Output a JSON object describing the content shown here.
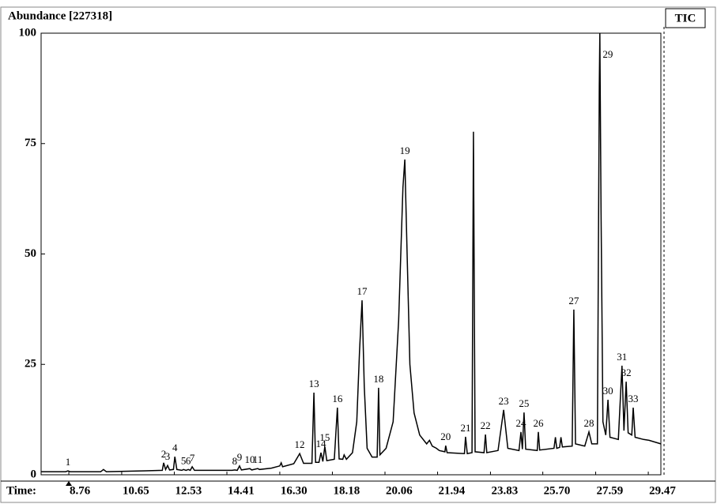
{
  "chart_data": {
    "type": "line",
    "title": "Abundance [227318]",
    "xlabel": "Time:",
    "legend": "TIC",
    "color": "#000000",
    "xlim": [
      7.77,
      29.92
    ],
    "xticks": [
      8.76,
      10.65,
      12.53,
      14.41,
      16.3,
      18.18,
      20.06,
      21.94,
      23.83,
      25.7,
      27.59,
      29.47
    ],
    "ylim": [
      0,
      100
    ],
    "yticks": [
      0,
      25,
      50,
      75,
      100
    ],
    "grid": false,
    "x": [
      7.77,
      8.65,
      8.73,
      8.8,
      9.9,
      10.0,
      10.1,
      11.5,
      12.1,
      12.15,
      12.22,
      12.29,
      12.36,
      12.5,
      12.55,
      12.62,
      12.8,
      12.86,
      12.95,
      13.03,
      13.1,
      13.17,
      13.25,
      14.6,
      14.69,
      14.78,
      14.86,
      14.93,
      15.23,
      15.3,
      15.51,
      15.58,
      16.0,
      16.3,
      16.35,
      16.4,
      16.8,
      17.01,
      17.15,
      17.45,
      17.52,
      17.58,
      17.7,
      17.77,
      17.84,
      17.91,
      17.98,
      18.25,
      18.36,
      18.42,
      18.55,
      18.6,
      18.68,
      18.9,
      19.05,
      19.15,
      19.24,
      19.32,
      19.42,
      19.6,
      19.78,
      19.83,
      19.88,
      20.1,
      20.35,
      20.55,
      20.7,
      20.77,
      20.85,
      20.95,
      21.1,
      21.3,
      21.55,
      21.65,
      21.75,
      21.9,
      22.0,
      22.2,
      22.23,
      22.28,
      22.9,
      22.94,
      23.0,
      23.17,
      23.22,
      23.28,
      23.6,
      23.65,
      23.7,
      24.1,
      24.3,
      24.45,
      24.85,
      24.92,
      24.97,
      25.03,
      25.09,
      25.5,
      25.54,
      25.59,
      26.1,
      26.15,
      26.2,
      26.3,
      26.35,
      26.4,
      26.75,
      26.81,
      26.87,
      27.2,
      27.35,
      27.45,
      27.65,
      27.72,
      27.74,
      27.78,
      27.85,
      27.95,
      28.03,
      28.1,
      28.4,
      28.53,
      28.6,
      28.68,
      28.75,
      28.88,
      28.93,
      29.0,
      29.3,
      29.5,
      29.92
    ],
    "y": [
      0.7,
      0.7,
      0.9,
      0.7,
      0.7,
      1.2,
      0.7,
      0.9,
      1.0,
      2.7,
      1.2,
      2.1,
      1.1,
      1.2,
      4.1,
      1.2,
      1.0,
      1.2,
      1.0,
      1.2,
      1.0,
      1.8,
      1.0,
      1.0,
      1.1,
      1.0,
      2.0,
      1.1,
      1.4,
      1.1,
      1.4,
      1.2,
      1.5,
      2.0,
      2.7,
      1.8,
      2.5,
      4.8,
      2.6,
      2.6,
      18.6,
      2.8,
      2.8,
      5.0,
      3.0,
      6.4,
      3.2,
      3.5,
      15.2,
      3.6,
      3.5,
      4.5,
      3.5,
      5,
      12,
      28,
      39.5,
      20,
      6,
      4.0,
      4.0,
      19.7,
      4.5,
      6,
      12,
      35,
      65,
      71.4,
      50,
      25,
      14,
      9,
      7,
      7.8,
      6.5,
      6,
      5.5,
      5.2,
      6.6,
      5.0,
      4.8,
      8.6,
      4.8,
      5.0,
      77.7,
      5.2,
      5.0,
      9.1,
      5.0,
      5.5,
      14.7,
      6.0,
      5.5,
      9.7,
      5.8,
      14.1,
      5.8,
      5.5,
      9.7,
      5.6,
      6,
      8.5,
      6,
      6.2,
      8.5,
      6.3,
      6.5,
      37.4,
      7,
      6.5,
      9.7,
      7,
      7,
      88,
      100,
      60,
      12,
      9,
      17.0,
      8.5,
      8,
      24.7,
      10,
      21.1,
      9.5,
      9,
      15.2,
      8.5,
      8,
      7.8,
      7.0
    ],
    "peaks": {
      "labels": [
        "1",
        "2",
        "3",
        "4",
        "5",
        "6",
        "7",
        "8",
        "9",
        "10",
        "11",
        "12",
        "13",
        "14",
        "15",
        "16",
        "17",
        "18",
        "19",
        "20",
        "21",
        "22",
        "23",
        "24",
        "25",
        "26",
        "27",
        "28",
        "29",
        "30",
        "31",
        "32",
        "33"
      ],
      "x": [
        8.73,
        12.15,
        12.29,
        12.55,
        12.86,
        13.03,
        13.17,
        14.69,
        14.86,
        15.23,
        15.51,
        17.01,
        17.52,
        17.77,
        17.91,
        18.36,
        19.24,
        19.83,
        20.77,
        22.23,
        22.94,
        23.65,
        24.3,
        24.92,
        25.03,
        25.54,
        26.81,
        27.35,
        27.74,
        28.03,
        28.53,
        28.68,
        28.93
      ],
      "y": [
        0.9,
        2.7,
        2.1,
        4.1,
        1.2,
        1.2,
        1.8,
        1.1,
        2.0,
        1.4,
        1.4,
        4.8,
        18.6,
        5.0,
        6.4,
        15.2,
        39.5,
        19.7,
        71.4,
        6.6,
        8.6,
        9.1,
        14.7,
        9.7,
        14.1,
        9.7,
        37.4,
        9.7,
        100,
        17.0,
        24.7,
        21.1,
        15.2
      ]
    }
  }
}
